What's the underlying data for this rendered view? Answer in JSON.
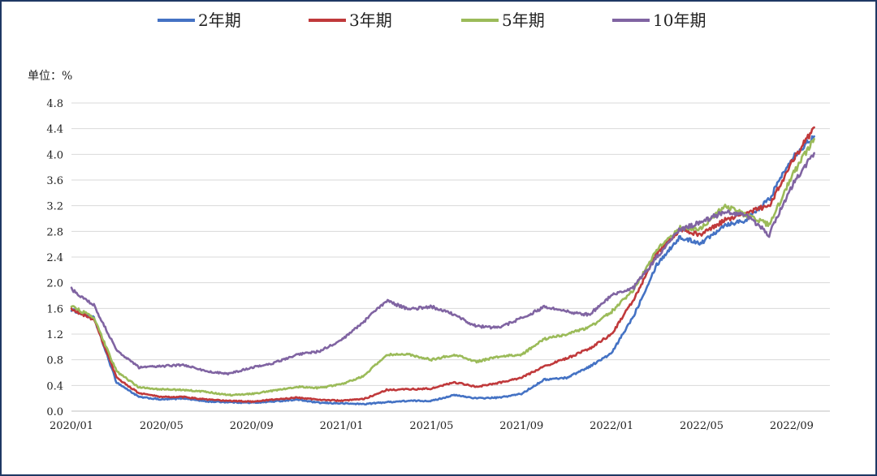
{
  "chart_data": {
    "type": "line",
    "unit_label": "单位：%",
    "ylim": [
      0.0,
      4.8
    ],
    "y_ticks": [
      "0.0",
      "0.4",
      "0.8",
      "1.2",
      "1.6",
      "2.0",
      "2.4",
      "2.8",
      "3.2",
      "3.6",
      "4.0",
      "4.4",
      "4.8"
    ],
    "x_ticks": [
      "2020/01",
      "2020/05",
      "2020/09",
      "2021/01",
      "2021/05",
      "2021/09",
      "2022/01",
      "2022/05",
      "2022/09"
    ],
    "grid": true,
    "legend_position": "top",
    "series": [
      {
        "name": "2年期",
        "color": "#4472c4",
        "points": [
          [
            "2020-01",
            1.58
          ],
          [
            "2020-02",
            1.45
          ],
          [
            "2020-03",
            0.45
          ],
          [
            "2020-04",
            0.22
          ],
          [
            "2020-05",
            0.18
          ],
          [
            "2020-06",
            0.2
          ],
          [
            "2020-07",
            0.15
          ],
          [
            "2020-08",
            0.14
          ],
          [
            "2020-09",
            0.13
          ],
          [
            "2020-10",
            0.15
          ],
          [
            "2020-11",
            0.18
          ],
          [
            "2020-12",
            0.13
          ],
          [
            "2021-01",
            0.12
          ],
          [
            "2021-02",
            0.11
          ],
          [
            "2021-03",
            0.14
          ],
          [
            "2021-04",
            0.16
          ],
          [
            "2021-05",
            0.16
          ],
          [
            "2021-06",
            0.25
          ],
          [
            "2021-07",
            0.2
          ],
          [
            "2021-08",
            0.21
          ],
          [
            "2021-09",
            0.27
          ],
          [
            "2021-10",
            0.49
          ],
          [
            "2021-11",
            0.52
          ],
          [
            "2021-12",
            0.69
          ],
          [
            "2022-01",
            0.9
          ],
          [
            "2022-02",
            1.5
          ],
          [
            "2022-03",
            2.28
          ],
          [
            "2022-04",
            2.7
          ],
          [
            "2022-05",
            2.62
          ],
          [
            "2022-06",
            2.9
          ],
          [
            "2022-07",
            2.98
          ],
          [
            "2022-08",
            3.3
          ],
          [
            "2022-09",
            3.95
          ],
          [
            "2022-10",
            4.28
          ]
        ]
      },
      {
        "name": "3年期",
        "color": "#c0393b",
        "points": [
          [
            "2020-01",
            1.58
          ],
          [
            "2020-02",
            1.43
          ],
          [
            "2020-03",
            0.52
          ],
          [
            "2020-04",
            0.28
          ],
          [
            "2020-05",
            0.22
          ],
          [
            "2020-06",
            0.22
          ],
          [
            "2020-07",
            0.18
          ],
          [
            "2020-08",
            0.16
          ],
          [
            "2020-09",
            0.15
          ],
          [
            "2020-10",
            0.18
          ],
          [
            "2020-11",
            0.21
          ],
          [
            "2020-12",
            0.18
          ],
          [
            "2021-01",
            0.16
          ],
          [
            "2021-02",
            0.19
          ],
          [
            "2021-03",
            0.33
          ],
          [
            "2021-04",
            0.34
          ],
          [
            "2021-05",
            0.35
          ],
          [
            "2021-06",
            0.45
          ],
          [
            "2021-07",
            0.38
          ],
          [
            "2021-08",
            0.44
          ],
          [
            "2021-09",
            0.52
          ],
          [
            "2021-10",
            0.7
          ],
          [
            "2021-11",
            0.82
          ],
          [
            "2021-12",
            0.97
          ],
          [
            "2022-01",
            1.2
          ],
          [
            "2022-02",
            1.75
          ],
          [
            "2022-03",
            2.45
          ],
          [
            "2022-04",
            2.82
          ],
          [
            "2022-05",
            2.75
          ],
          [
            "2022-06",
            2.97
          ],
          [
            "2022-07",
            3.1
          ],
          [
            "2022-08",
            3.2
          ],
          [
            "2022-09",
            3.87
          ],
          [
            "2022-10",
            4.42
          ]
        ]
      },
      {
        "name": "5年期",
        "color": "#9bbb59",
        "points": [
          [
            "2020-01",
            1.64
          ],
          [
            "2020-02",
            1.45
          ],
          [
            "2020-03",
            0.62
          ],
          [
            "2020-04",
            0.37
          ],
          [
            "2020-05",
            0.34
          ],
          [
            "2020-06",
            0.33
          ],
          [
            "2020-07",
            0.3
          ],
          [
            "2020-08",
            0.25
          ],
          [
            "2020-09",
            0.27
          ],
          [
            "2020-10",
            0.32
          ],
          [
            "2020-11",
            0.38
          ],
          [
            "2020-12",
            0.36
          ],
          [
            "2021-01",
            0.42
          ],
          [
            "2021-02",
            0.55
          ],
          [
            "2021-03",
            0.88
          ],
          [
            "2021-04",
            0.88
          ],
          [
            "2021-05",
            0.8
          ],
          [
            "2021-06",
            0.88
          ],
          [
            "2021-07",
            0.77
          ],
          [
            "2021-08",
            0.85
          ],
          [
            "2021-09",
            0.88
          ],
          [
            "2021-10",
            1.12
          ],
          [
            "2021-11",
            1.2
          ],
          [
            "2021-12",
            1.3
          ],
          [
            "2022-01",
            1.55
          ],
          [
            "2022-02",
            1.9
          ],
          [
            "2022-03",
            2.5
          ],
          [
            "2022-04",
            2.85
          ],
          [
            "2022-05",
            2.85
          ],
          [
            "2022-06",
            3.2
          ],
          [
            "2022-07",
            3.05
          ],
          [
            "2022-08",
            2.9
          ],
          [
            "2022-09",
            3.65
          ],
          [
            "2022-10",
            4.24
          ]
        ]
      },
      {
        "name": "10年期",
        "color": "#8064a2",
        "points": [
          [
            "2020-01",
            1.9
          ],
          [
            "2020-02",
            1.65
          ],
          [
            "2020-03",
            0.95
          ],
          [
            "2020-04",
            0.68
          ],
          [
            "2020-05",
            0.7
          ],
          [
            "2020-06",
            0.72
          ],
          [
            "2020-07",
            0.62
          ],
          [
            "2020-08",
            0.58
          ],
          [
            "2020-09",
            0.68
          ],
          [
            "2020-10",
            0.75
          ],
          [
            "2020-11",
            0.88
          ],
          [
            "2020-12",
            0.93
          ],
          [
            "2021-01",
            1.1
          ],
          [
            "2021-02",
            1.4
          ],
          [
            "2021-03",
            1.72
          ],
          [
            "2021-04",
            1.58
          ],
          [
            "2021-05",
            1.63
          ],
          [
            "2021-06",
            1.5
          ],
          [
            "2021-07",
            1.32
          ],
          [
            "2021-08",
            1.3
          ],
          [
            "2021-09",
            1.45
          ],
          [
            "2021-10",
            1.62
          ],
          [
            "2021-11",
            1.55
          ],
          [
            "2021-12",
            1.5
          ],
          [
            "2022-01",
            1.8
          ],
          [
            "2022-02",
            1.93
          ],
          [
            "2022-03",
            2.4
          ],
          [
            "2022-04",
            2.82
          ],
          [
            "2022-05",
            2.95
          ],
          [
            "2022-06",
            3.1
          ],
          [
            "2022-07",
            3.05
          ],
          [
            "2022-08",
            2.75
          ],
          [
            "2022-09",
            3.5
          ],
          [
            "2022-10",
            4.02
          ]
        ]
      }
    ]
  }
}
